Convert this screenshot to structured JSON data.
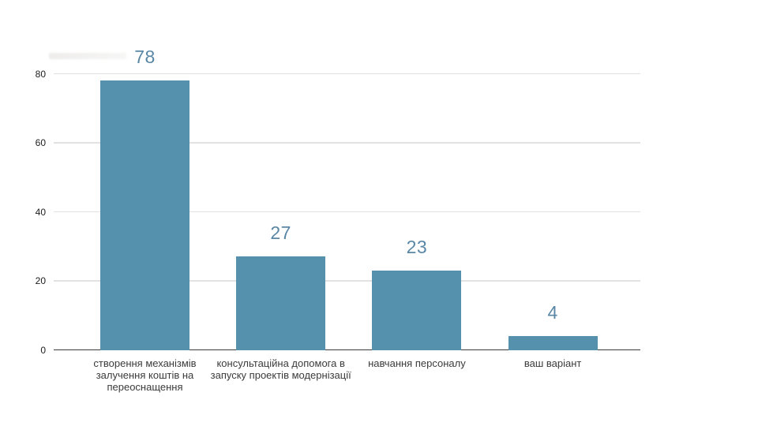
{
  "chart_data": {
    "type": "bar",
    "title": "",
    "xlabel": "",
    "ylabel": "",
    "categories": [
      "створення механізмів залучення коштів на переоснащення",
      "консультаційна допомога в запуску проектів модернізації",
      "навчання персоналу",
      "ваш варіант"
    ],
    "values": [
      78,
      27,
      23,
      4
    ],
    "data_labels": [
      "78",
      "27",
      "23",
      "4"
    ],
    "ylim": [
      0,
      80
    ],
    "yticks": [
      0,
      20,
      40,
      60,
      80
    ],
    "grid": true,
    "legend": false,
    "colors": {
      "bar": "#5591ad",
      "value_label": "#5a87a5",
      "gridline": "#e2e2e2",
      "axis": "#3b3b3b",
      "tick_label": "#1c1c1c",
      "category_label": "#3b3b3b",
      "background": "#ffffff"
    }
  }
}
